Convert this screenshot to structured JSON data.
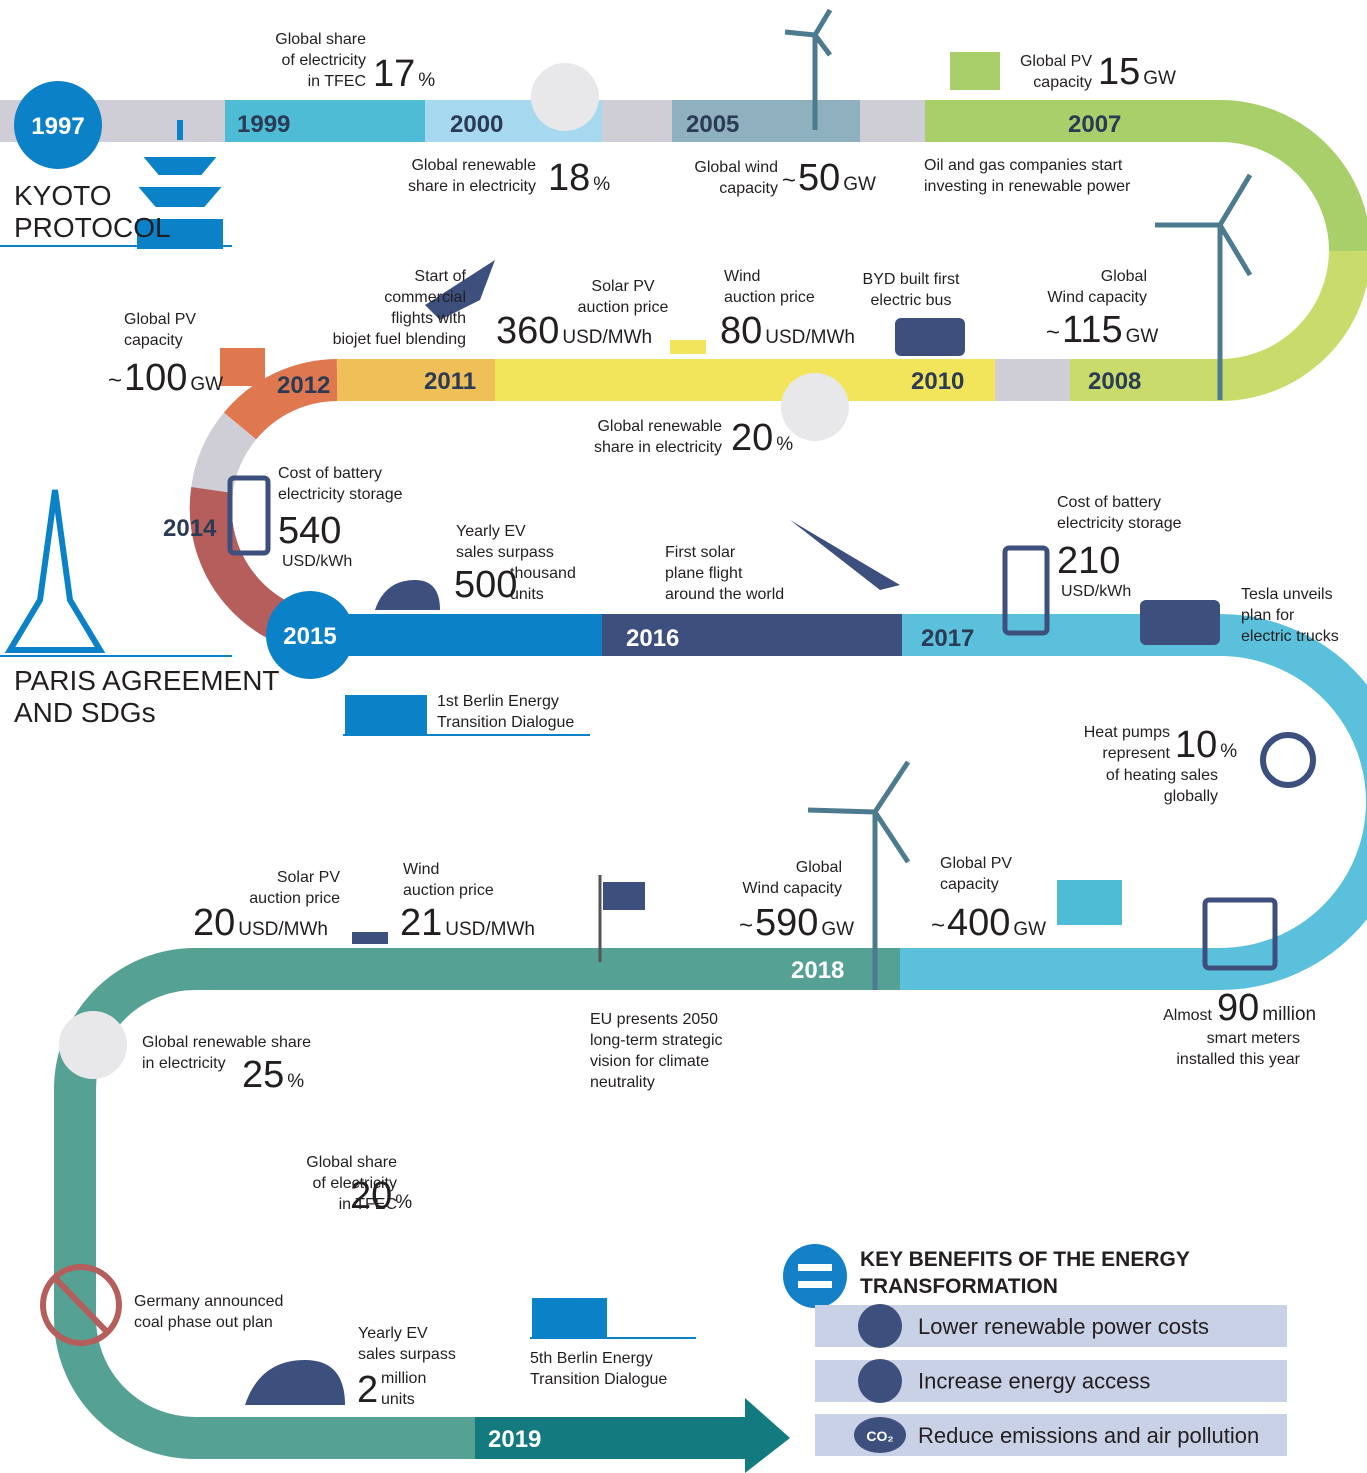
{
  "years": [
    1997,
    1999,
    2000,
    2005,
    2007,
    2008,
    2010,
    2011,
    2012,
    2014,
    2015,
    2016,
    2017,
    2018,
    2019
  ],
  "kyoto_lines": [
    "KYOTO",
    "PROTOCOL"
  ],
  "paris_lines": [
    "PARIS AGREEMENT",
    "AND SDGs"
  ],
  "events": [
    {
      "lines": [
        "Global share",
        "of electricity",
        "in TFEC"
      ],
      "value": 17,
      "unit": "%"
    },
    {
      "lines": [
        "Global renewable",
        "share in electricity"
      ],
      "value": 18,
      "unit": "%"
    },
    {
      "lines": [
        "Global wind",
        "capacity"
      ],
      "prefix": "~",
      "value": 50,
      "unit": "GW"
    },
    {
      "lines": [
        "Global PV",
        "capacity"
      ],
      "value": 15,
      "unit": "GW"
    },
    {
      "lines": [
        "Oil and gas companies start",
        "investing in renewable power"
      ]
    },
    {
      "lines": [
        "Global",
        "Wind capacity"
      ],
      "prefix": "~",
      "value": 115,
      "unit": "GW"
    },
    {
      "lines": [
        "BYD built first",
        "electric bus"
      ]
    },
    {
      "lines": [
        "Wind",
        "auction price"
      ],
      "value": 80,
      "unit": "USD/MWh"
    },
    {
      "lines": [
        "Solar PV",
        "auction price"
      ],
      "value": 360,
      "unit": "USD/MWh"
    },
    {
      "lines": [
        "Start of",
        "commercial",
        "flights with",
        "biojet fuel blending"
      ]
    },
    {
      "lines": [
        "Global renewable",
        "share in electricity"
      ],
      "value": 20,
      "unit": "%"
    },
    {
      "lines": [
        "Global PV",
        "capacity"
      ],
      "prefix": "~",
      "value": 100,
      "unit": "GW"
    },
    {
      "lines": [
        "Cost of battery",
        "electricity storage"
      ],
      "value": 540,
      "unit": [
        "USD/kWh"
      ]
    },
    {
      "lines": [
        "Yearly EV",
        "sales surpass"
      ],
      "value": 500,
      "unit": [
        "thousand",
        "units"
      ]
    },
    {
      "lines": [
        "First solar",
        "plane flight",
        "around the world"
      ]
    },
    {
      "lines": [
        "Cost of battery",
        "electricity storage"
      ],
      "value": 210,
      "unit": [
        "USD/kWh"
      ]
    },
    {
      "lines": [
        "Tesla unveils",
        "plan for",
        "electric trucks"
      ]
    },
    {
      "lines": [
        "1st Berlin Energy",
        "Transition Dialogue"
      ]
    },
    {
      "lines": [
        "Heat pumps",
        "represent"
      ],
      "value": 10,
      "unit": "%",
      "lines_after": [
        "of heating sales",
        "globally"
      ]
    },
    {
      "lines": [
        "Global PV",
        "capacity"
      ],
      "prefix": "~",
      "value": 400,
      "unit": "GW"
    },
    {
      "lines": [
        "Global",
        "Wind capacity"
      ],
      "prefix": "~",
      "value": 590,
      "unit": "GW"
    },
    {
      "lines": [
        "EU presents 2050",
        "long-term strategic",
        "vision for climate",
        "neutrality"
      ]
    },
    {
      "lines": [
        "Almost"
      ],
      "value": 90,
      "unit": "million",
      "lines_after": [
        "smart meters",
        "installed this year"
      ]
    },
    {
      "lines": [
        "Wind",
        "auction price"
      ],
      "value": 21,
      "unit": "USD/MWh"
    },
    {
      "lines": [
        "Solar PV",
        "auction price"
      ],
      "value": 20,
      "unit": "USD/MWh"
    },
    {
      "lines": [
        "Global renewable share",
        "in electricity"
      ],
      "value": 25,
      "unit": "%"
    },
    {
      "lines": [
        "Global share",
        "of electricity",
        "in TFEC"
      ],
      "value": 20,
      "unit": "%"
    },
    {
      "lines": [
        "Germany announced",
        "coal phase out plan"
      ]
    },
    {
      "lines": [
        "5th Berlin Energy",
        "Transition Dialogue"
      ]
    },
    {
      "lines": [
        "Yearly EV",
        "sales surpass"
      ],
      "value": 2,
      "unit": [
        "million",
        "units"
      ]
    }
  ],
  "benefits": {
    "title": [
      "KEY BENEFITS OF THE ENERGY",
      "TRANSFORMATION"
    ],
    "items": [
      "Lower renewable power costs",
      "Increase energy access",
      "Reduce emissions and air pollution"
    ],
    "co2": "CO₂"
  }
}
